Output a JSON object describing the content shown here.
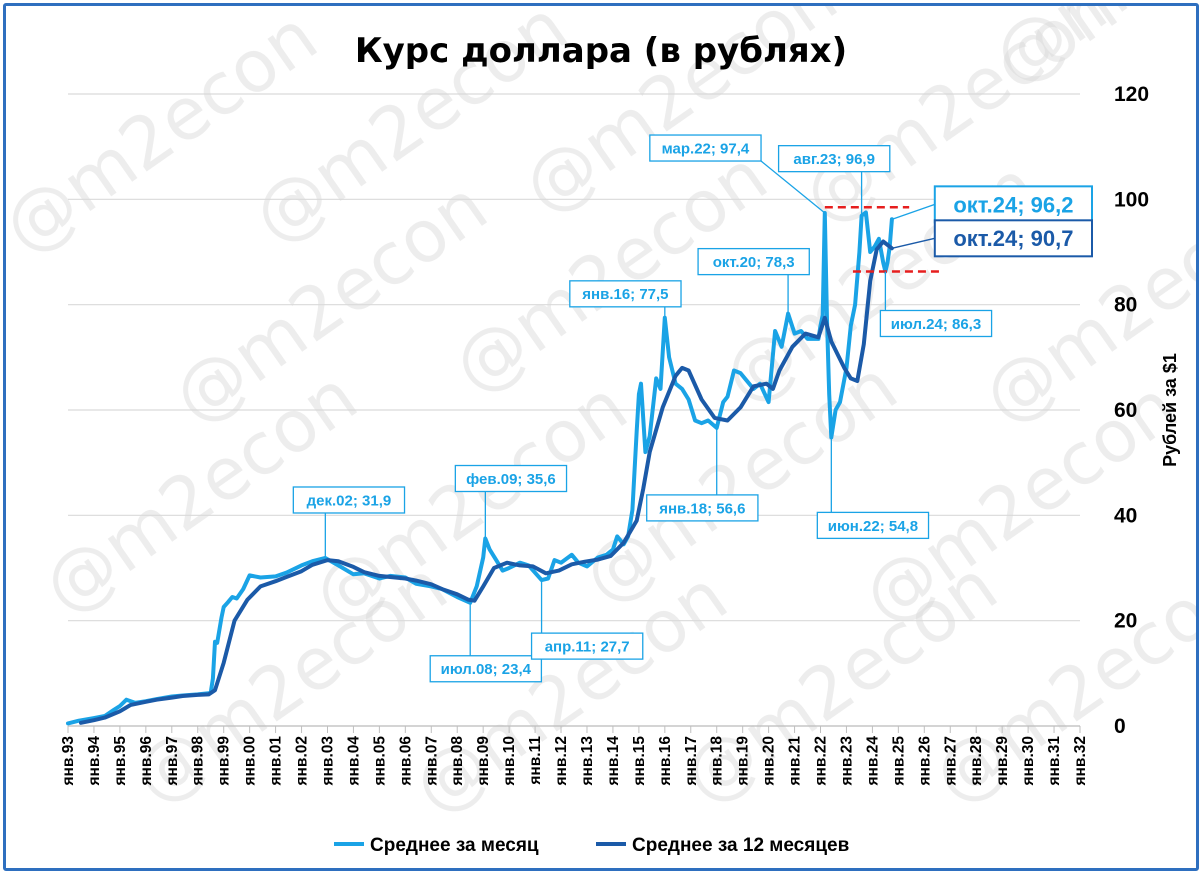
{
  "colors": {
    "monthly": "#1aa3e6",
    "yearly": "#1b5aa8",
    "grid": "#d9d9d9",
    "redline": "#e61e1e",
    "border": "#2e6fbf",
    "watermark": "#d9d9d9"
  },
  "watermark_text": "@m2econ",
  "chart_data": {
    "type": "line",
    "title": "Курс доллара (в рублях)",
    "ylabel": "Рублей за $1",
    "xlabel": "",
    "ylim": [
      0,
      120
    ],
    "xlim": [
      "янв.93",
      "янв.32"
    ],
    "yticks": [
      "0",
      "20",
      "40",
      "60",
      "80",
      "100",
      "120"
    ],
    "grid": "horizontal",
    "y_axis_side": "right",
    "legend_position": "bottom",
    "categories": [
      "янв.93",
      "янв.94",
      "янв.95",
      "янв.96",
      "янв.97",
      "янв.98",
      "янв.99",
      "янв.00",
      "янв.01",
      "янв.02",
      "янв.03",
      "янв.04",
      "янв.05",
      "янв.06",
      "янв.07",
      "янв.08",
      "янв.09",
      "янв.10",
      "янв.11",
      "янв.12",
      "янв.13",
      "янв.14",
      "янв.15",
      "янв.16",
      "янв.17",
      "янв.18",
      "янв.19",
      "янв.20",
      "янв.21",
      "янв.22",
      "янв.23",
      "янв.24",
      "янв.25",
      "янв.26",
      "янв.27",
      "янв.28",
      "янв.29",
      "янв.30",
      "янв.31",
      "янв.32"
    ],
    "series": [
      {
        "name": "Среднее за месяц",
        "color": "#1aa3e6",
        "points": [
          [
            "1993-01",
            0.5
          ],
          [
            "1993-06",
            1.0
          ],
          [
            "1994-01",
            1.5
          ],
          [
            "1994-06",
            1.9
          ],
          [
            "1994-10",
            3.0
          ],
          [
            "1995-01",
            3.8
          ],
          [
            "1995-04",
            5.0
          ],
          [
            "1995-08",
            4.4
          ],
          [
            "1996-01",
            4.7
          ],
          [
            "1996-06",
            5.1
          ],
          [
            "1997-01",
            5.6
          ],
          [
            "1997-06",
            5.8
          ],
          [
            "1998-01",
            6.0
          ],
          [
            "1998-06",
            6.2
          ],
          [
            "1998-07",
            6.3
          ],
          [
            "1998-08",
            9.0
          ],
          [
            "1998-09",
            16.0
          ],
          [
            "1998-10",
            15.8
          ],
          [
            "1998-12",
            20.6
          ],
          [
            "1999-01",
            22.6
          ],
          [
            "1999-03",
            23.5
          ],
          [
            "1999-05",
            24.5
          ],
          [
            "1999-07",
            24.2
          ],
          [
            "1999-10",
            26.0
          ],
          [
            "2000-01",
            28.6
          ],
          [
            "2000-06",
            28.2
          ],
          [
            "2001-01",
            28.4
          ],
          [
            "2001-06",
            29.1
          ],
          [
            "2002-01",
            30.5
          ],
          [
            "2002-06",
            31.3
          ],
          [
            "2002-12",
            31.9
          ],
          [
            "2003-06",
            30.5
          ],
          [
            "2004-01",
            28.8
          ],
          [
            "2004-06",
            29.0
          ],
          [
            "2005-01",
            28.0
          ],
          [
            "2005-06",
            28.5
          ],
          [
            "2006-01",
            28.2
          ],
          [
            "2006-06",
            27.0
          ],
          [
            "2007-01",
            26.5
          ],
          [
            "2007-06",
            26.0
          ],
          [
            "2008-01",
            24.5
          ],
          [
            "2008-07",
            23.4
          ],
          [
            "2008-10",
            26.5
          ],
          [
            "2009-01",
            32.0
          ],
          [
            "2009-02",
            35.6
          ],
          [
            "2009-04",
            33.5
          ],
          [
            "2009-07",
            31.5
          ],
          [
            "2009-10",
            29.5
          ],
          [
            "2010-01",
            30.0
          ],
          [
            "2010-06",
            31.0
          ],
          [
            "2010-10",
            30.5
          ],
          [
            "2011-04",
            27.7
          ],
          [
            "2011-07",
            28.0
          ],
          [
            "2011-10",
            31.5
          ],
          [
            "2012-01",
            31.0
          ],
          [
            "2012-06",
            32.5
          ],
          [
            "2012-09",
            31.0
          ],
          [
            "2013-01",
            30.3
          ],
          [
            "2013-06",
            32.0
          ],
          [
            "2013-10",
            32.5
          ],
          [
            "2014-01",
            33.5
          ],
          [
            "2014-03",
            36.0
          ],
          [
            "2014-06",
            34.5
          ],
          [
            "2014-08",
            36.0
          ],
          [
            "2014-10",
            41.0
          ],
          [
            "2014-12",
            56.0
          ],
          [
            "2015-01",
            63.0
          ],
          [
            "2015-02",
            65.0
          ],
          [
            "2015-04",
            52.0
          ],
          [
            "2015-06",
            55.0
          ],
          [
            "2015-09",
            66.0
          ],
          [
            "2015-11",
            64.0
          ],
          [
            "2016-01",
            77.5
          ],
          [
            "2016-03",
            70.0
          ],
          [
            "2016-06",
            65.0
          ],
          [
            "2016-09",
            64.0
          ],
          [
            "2016-12",
            62.0
          ],
          [
            "2017-03",
            58.0
          ],
          [
            "2017-06",
            57.5
          ],
          [
            "2017-09",
            58.0
          ],
          [
            "2018-01",
            56.6
          ],
          [
            "2018-04",
            61.5
          ],
          [
            "2018-06",
            62.5
          ],
          [
            "2018-09",
            67.5
          ],
          [
            "2018-12",
            67.0
          ],
          [
            "2019-03",
            65.5
          ],
          [
            "2019-06",
            64.0
          ],
          [
            "2019-09",
            65.0
          ],
          [
            "2020-01",
            61.5
          ],
          [
            "2020-04",
            75.0
          ],
          [
            "2020-07",
            72.0
          ],
          [
            "2020-10",
            78.3
          ],
          [
            "2021-01",
            74.5
          ],
          [
            "2021-04",
            75.0
          ],
          [
            "2021-07",
            73.5
          ],
          [
            "2021-12",
            73.5
          ],
          [
            "2022-01",
            76.0
          ],
          [
            "2022-02",
            78.0
          ],
          [
            "2022-03",
            97.4
          ],
          [
            "2022-04",
            77.0
          ],
          [
            "2022-05",
            63.0
          ],
          [
            "2022-06",
            54.8
          ],
          [
            "2022-08",
            60.0
          ],
          [
            "2022-10",
            61.5
          ],
          [
            "2023-01",
            68.0
          ],
          [
            "2023-03",
            76.0
          ],
          [
            "2023-05",
            80.0
          ],
          [
            "2023-07",
            90.0
          ],
          [
            "2023-08",
            96.9
          ],
          [
            "2023-10",
            97.5
          ],
          [
            "2023-12",
            90.0
          ],
          [
            "2024-02",
            91.0
          ],
          [
            "2024-04",
            92.5
          ],
          [
            "2024-06",
            88.0
          ],
          [
            "2024-07",
            86.3
          ],
          [
            "2024-08",
            88.0
          ],
          [
            "2024-09",
            91.0
          ],
          [
            "2024-10",
            96.2
          ]
        ]
      },
      {
        "name": "Среднее за 12 месяцев",
        "color": "#1b5aa8",
        "points": [
          [
            "1993-07",
            0.6
          ],
          [
            "1994-01",
            1.1
          ],
          [
            "1994-06",
            1.6
          ],
          [
            "1995-01",
            2.8
          ],
          [
            "1995-06",
            4.0
          ],
          [
            "1996-01",
            4.6
          ],
          [
            "1996-06",
            5.0
          ],
          [
            "1997-01",
            5.4
          ],
          [
            "1997-06",
            5.7
          ],
          [
            "1998-01",
            5.9
          ],
          [
            "1998-06",
            6.0
          ],
          [
            "1998-09",
            6.8
          ],
          [
            "1999-01",
            12.0
          ],
          [
            "1999-06",
            20.0
          ],
          [
            "1999-12",
            24.0
          ],
          [
            "2000-06",
            26.5
          ],
          [
            "2001-01",
            27.5
          ],
          [
            "2001-06",
            28.3
          ],
          [
            "2002-01",
            29.4
          ],
          [
            "2002-06",
            30.6
          ],
          [
            "2003-01",
            31.5
          ],
          [
            "2003-06",
            31.3
          ],
          [
            "2004-01",
            30.2
          ],
          [
            "2004-06",
            29.2
          ],
          [
            "2005-01",
            28.5
          ],
          [
            "2005-06",
            28.3
          ],
          [
            "2006-01",
            28.0
          ],
          [
            "2006-06",
            27.6
          ],
          [
            "2007-01",
            26.9
          ],
          [
            "2007-06",
            26.0
          ],
          [
            "2008-01",
            25.0
          ],
          [
            "2008-06",
            24.0
          ],
          [
            "2008-09",
            23.8
          ],
          [
            "2009-01",
            26.5
          ],
          [
            "2009-06",
            30.0
          ],
          [
            "2009-12",
            31.0
          ],
          [
            "2010-06",
            30.5
          ],
          [
            "2010-12",
            30.3
          ],
          [
            "2011-06",
            29.0
          ],
          [
            "2011-12",
            29.5
          ],
          [
            "2012-06",
            30.7
          ],
          [
            "2012-12",
            31.2
          ],
          [
            "2013-06",
            31.6
          ],
          [
            "2013-12",
            32.3
          ],
          [
            "2014-06",
            34.8
          ],
          [
            "2014-12",
            39.0
          ],
          [
            "2015-03",
            45.0
          ],
          [
            "2015-06",
            52.0
          ],
          [
            "2015-12",
            60.5
          ],
          [
            "2016-06",
            66.5
          ],
          [
            "2016-09",
            68.0
          ],
          [
            "2016-12",
            67.5
          ],
          [
            "2017-06",
            62.0
          ],
          [
            "2017-12",
            58.5
          ],
          [
            "2018-06",
            58.0
          ],
          [
            "2018-12",
            60.5
          ],
          [
            "2019-06",
            64.5
          ],
          [
            "2019-12",
            65.0
          ],
          [
            "2020-03",
            64.0
          ],
          [
            "2020-06",
            67.5
          ],
          [
            "2020-12",
            72.0
          ],
          [
            "2021-06",
            74.5
          ],
          [
            "2021-12",
            73.8
          ],
          [
            "2022-03",
            77.5
          ],
          [
            "2022-06",
            73.0
          ],
          [
            "2022-09",
            70.5
          ],
          [
            "2022-12",
            68.0
          ],
          [
            "2023-03",
            66.0
          ],
          [
            "2023-06",
            65.5
          ],
          [
            "2023-09",
            72.5
          ],
          [
            "2023-12",
            84.5
          ],
          [
            "2024-03",
            90.5
          ],
          [
            "2024-06",
            92.0
          ],
          [
            "2024-10",
            90.7
          ]
        ]
      }
    ],
    "annotations": [
      {
        "label": "дек.02; 31,9",
        "series": "monthly",
        "x": "2002-12",
        "y": 31.9
      },
      {
        "label": "июл.08; 23,4",
        "series": "monthly",
        "x": "2008-07",
        "y": 23.4
      },
      {
        "label": "фев.09; 35,6",
        "series": "monthly",
        "x": "2009-02",
        "y": 35.6
      },
      {
        "label": "апр.11; 27,7",
        "series": "monthly",
        "x": "2011-04",
        "y": 27.7
      },
      {
        "label": "янв.16; 77,5",
        "series": "monthly",
        "x": "2016-01",
        "y": 77.5
      },
      {
        "label": "янв.18; 56,6",
        "series": "monthly",
        "x": "2018-01",
        "y": 56.6
      },
      {
        "label": "окт.20; 78,3",
        "series": "monthly",
        "x": "2020-10",
        "y": 78.3
      },
      {
        "label": "мар.22; 97,4",
        "series": "monthly",
        "x": "2022-03",
        "y": 97.4
      },
      {
        "label": "июн.22; 54,8",
        "series": "monthly",
        "x": "2022-06",
        "y": 54.8
      },
      {
        "label": "авг.23; 96,9",
        "series": "monthly",
        "x": "2023-08",
        "y": 96.9
      },
      {
        "label": "июл.24; 86,3",
        "series": "monthly",
        "x": "2024-07",
        "y": 86.3
      },
      {
        "label": "окт.24; 96,2",
        "series": "monthly",
        "x": "2024-10",
        "y": 96.2
      },
      {
        "label": "окт.24; 90,7",
        "series": "yearly",
        "x": "2024-10",
        "y": 90.7
      }
    ],
    "reference_lines": [
      {
        "y": 98.5,
        "from": "2022-03",
        "to": "2025-06"
      },
      {
        "y": 86.3,
        "from": "2023-04",
        "to": "2026-08"
      }
    ]
  }
}
